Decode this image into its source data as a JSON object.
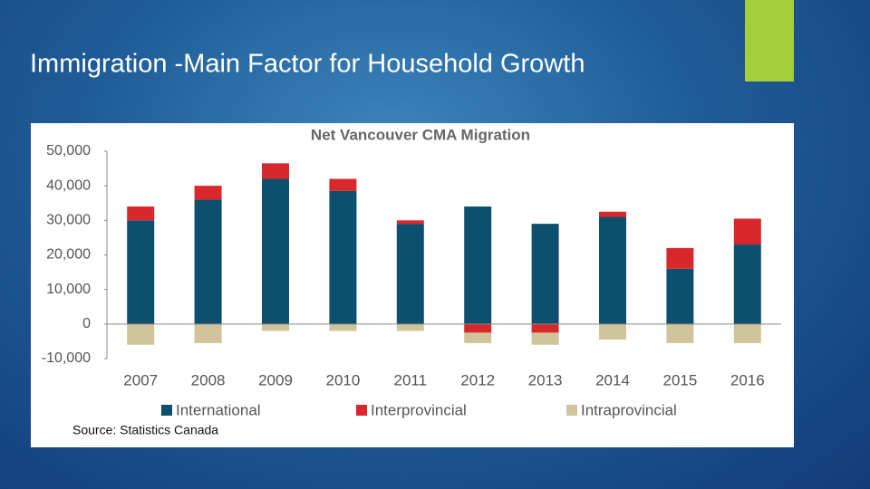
{
  "slide_title": "Immigration -Main Factor for Household Growth",
  "chart_data": {
    "type": "stacked-bar",
    "title": "Net Vancouver CMA Migration",
    "categories": [
      "2007",
      "2008",
      "2009",
      "2010",
      "2011",
      "2012",
      "2013",
      "2014",
      "2015",
      "2016"
    ],
    "series": [
      {
        "name": "International",
        "color": "#0d4f6f",
        "values": [
          30000,
          36000,
          42000,
          38500,
          29000,
          34000,
          29000,
          31000,
          16000,
          23000
        ]
      },
      {
        "name": "Interprovincial",
        "color": "#d8282b",
        "values": [
          4000,
          4000,
          4500,
          3500,
          1000,
          -2500,
          -2500,
          1500,
          6000,
          7500
        ]
      },
      {
        "name": "Intraprovincial",
        "color": "#cfc49b",
        "values": [
          -6000,
          -5500,
          -2000,
          -2000,
          -2000,
          -3000,
          -3500,
          -4500,
          -5500,
          -5500
        ]
      }
    ],
    "ylim": [
      -10000,
      50000
    ],
    "yticks": [
      {
        "value": -10000,
        "label": "-10,000"
      },
      0,
      {
        "value": 10000,
        "label": "10,000"
      },
      {
        "value": 20000,
        "label": "20,000"
      },
      {
        "value": 30000,
        "label": "30,000"
      },
      {
        "value": 40000,
        "label": "40,000"
      },
      {
        "value": 50000,
        "label": "50,000"
      }
    ],
    "source": "Source: Statistics Canada"
  }
}
